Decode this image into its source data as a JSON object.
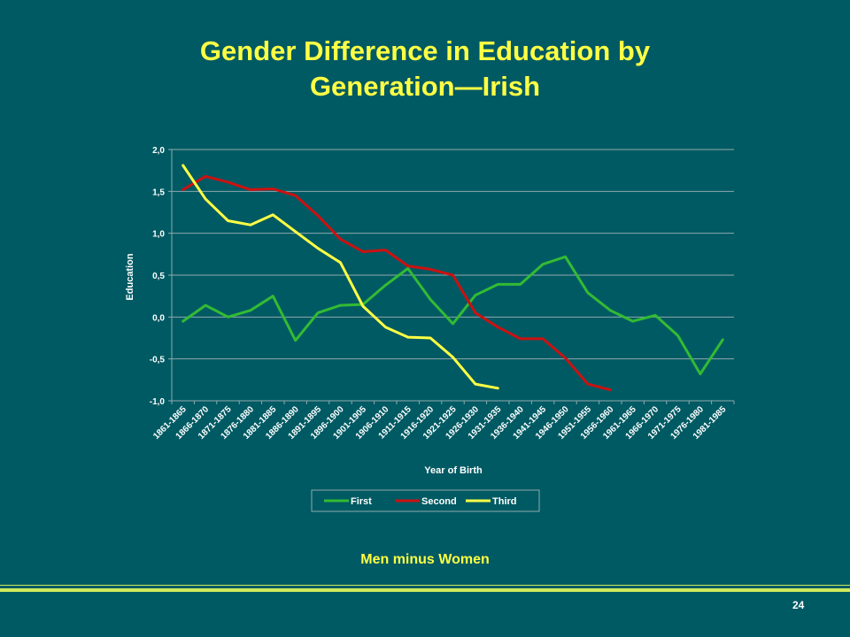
{
  "slide": {
    "title_line1": "Gender Difference in Education by",
    "title_line2": "Generation—Irish",
    "caption": "Men minus Women",
    "page_number": "24"
  },
  "colors": {
    "background": "#005A63",
    "title": "#FFFF44",
    "gridline": "#8FA9AE",
    "axis_text": "#FFFFFF"
  },
  "chart_data": {
    "type": "line",
    "title": "",
    "xlabel": "Year of Birth",
    "ylabel": "Education",
    "ylim": [
      -1.0,
      2.0
    ],
    "yticks": [
      "-1,0",
      "-0,5",
      "0,0",
      "0,5",
      "1,0",
      "1,5",
      "2,0"
    ],
    "grid": true,
    "legend_position": "bottom",
    "categories": [
      "1861-1865",
      "1866-1870",
      "1871-1875",
      "1876-1880",
      "1881-1885",
      "1886-1890",
      "1891-1895",
      "1896-1900",
      "1901-1905",
      "1906-1910",
      "1911-1915",
      "1916-1920",
      "1921-1925",
      "1926-1930",
      "1931-1935",
      "1936-1940",
      "1941-1945",
      "1946-1950",
      "1951-1955",
      "1956-1960",
      "1961-1965",
      "1966-1970",
      "1971-1975",
      "1976-1980",
      "1981-1985"
    ],
    "series": [
      {
        "name": "First",
        "color": "#33BB33",
        "values": [
          -0.05,
          0.14,
          0.0,
          0.08,
          0.25,
          -0.28,
          0.05,
          0.14,
          0.15,
          0.38,
          0.58,
          0.21,
          -0.08,
          0.26,
          0.39,
          0.39,
          0.63,
          0.72,
          0.29,
          0.08,
          -0.05,
          0.02,
          -0.22,
          -0.68,
          -0.27
        ]
      },
      {
        "name": "Second",
        "color": "#CC1111",
        "values": [
          1.52,
          1.68,
          1.61,
          1.52,
          1.53,
          1.45,
          1.21,
          0.93,
          0.78,
          0.8,
          0.61,
          0.57,
          0.5,
          0.05,
          -0.12,
          -0.26,
          -0.26,
          -0.49,
          -0.8,
          -0.87,
          null,
          null,
          null,
          null,
          null
        ]
      },
      {
        "name": "Third",
        "color": "#FFFF44",
        "values": [
          1.81,
          1.41,
          1.15,
          1.1,
          1.22,
          1.02,
          0.82,
          0.65,
          0.13,
          -0.12,
          -0.24,
          -0.25,
          -0.48,
          -0.8,
          -0.85,
          null,
          null,
          null,
          null,
          null,
          null,
          null,
          null,
          null,
          null
        ]
      }
    ]
  }
}
